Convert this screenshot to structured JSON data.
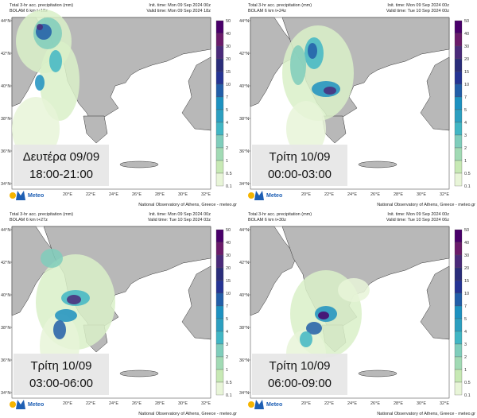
{
  "shared": {
    "lat_labels": [
      "44°N",
      "42°N",
      "40°N",
      "38°N",
      "36°N",
      "34°N"
    ],
    "lon_labels": [
      "20°E",
      "22°E",
      "24°E",
      "26°E",
      "28°E",
      "30°E",
      "32°E"
    ],
    "colorbar_labels": [
      "50",
      "40",
      "30",
      "20",
      "15",
      "10",
      "7",
      "5",
      "4",
      "3",
      "2",
      "1",
      "0.5",
      "0.1"
    ],
    "logo": "Meteo",
    "footer": "National Observatory of Athens, Greece - meteo.gr"
  },
  "panels": [
    {
      "title": "Total 3-hr acc. precipitation (mm)",
      "model": "BOLAM 6 km t+18z",
      "init": "Init. time: Mon 09 Sep 2024 00z",
      "valid": "Valid time: Mon 09 Sep 2024 18z",
      "day": "Δευτέρα 09/09",
      "hours": "18:00-21:00"
    },
    {
      "title": "Total 3-hr acc. precipitation (mm)",
      "model": "BOLAM 6 km t+24z",
      "init": "Init. time: Mon 09 Sep 2024 00z",
      "valid": "Valid time: Tue 10 Sep 2024 00z",
      "day": "Τρίτη 10/09",
      "hours": "00:00-03:00"
    },
    {
      "title": "Total 3-hr acc. precipitation (mm)",
      "model": "BOLAM 6 km t+27z",
      "init": "Init. time: Mon 09 Sep 2024 00z",
      "valid": "Valid time: Tue 10 Sep 2024 03z",
      "day": "Τρίτη 10/09",
      "hours": "03:00-06:00"
    },
    {
      "title": "Total 3-hr acc. precipitation (mm)",
      "model": "BOLAM 6 km t+30z",
      "init": "Init. time: Mon 09 Sep 2024 00z",
      "valid": "Valid time: Tue 10 Sep 2024 06z",
      "day": "Τρίτη 10/09",
      "hours": "06:00-09:00"
    }
  ]
}
